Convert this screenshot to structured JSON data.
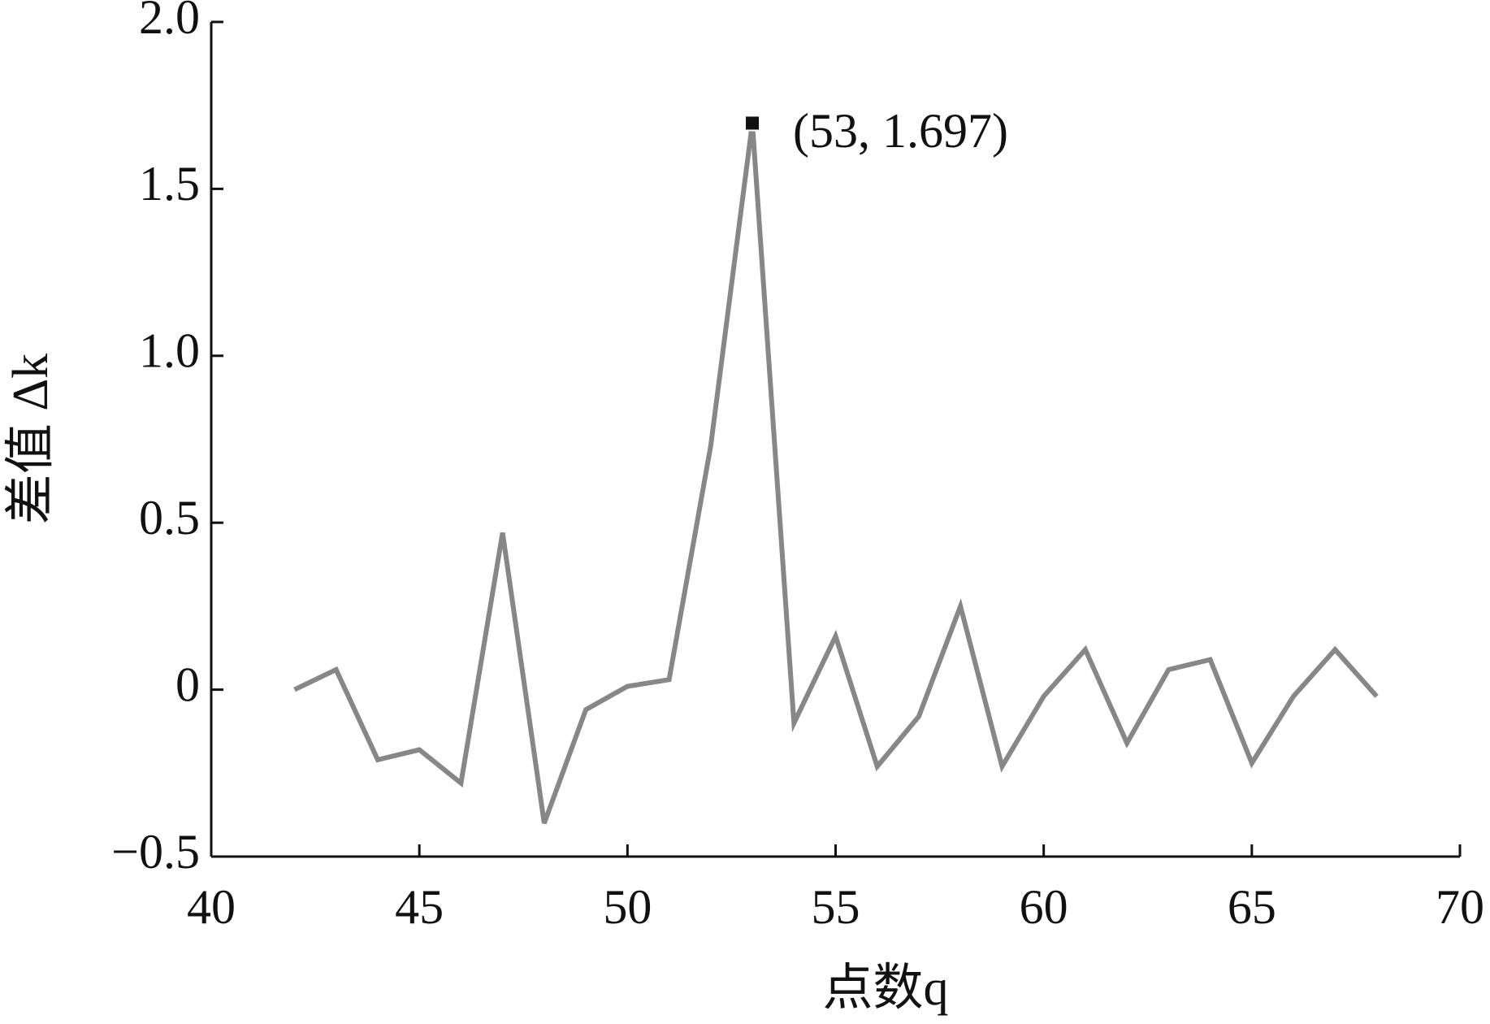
{
  "chart_data": {
    "type": "line",
    "x_label": "点数q",
    "y_label": "差值 Δk",
    "x": [
      42,
      43,
      44,
      45,
      46,
      47,
      48,
      49,
      50,
      51,
      52,
      53,
      54,
      55,
      56,
      57,
      58,
      59,
      60,
      61,
      62,
      63,
      64,
      65,
      66,
      67,
      68
    ],
    "series": [
      {
        "color": "#878787",
        "values": [
          0.0,
          0.06,
          -0.21,
          -0.18,
          -0.28,
          0.47,
          -0.4,
          -0.06,
          0.01,
          0.03,
          0.73,
          1.697,
          -0.1,
          0.16,
          -0.23,
          -0.08,
          0.25,
          -0.23,
          -0.02,
          0.12,
          -0.16,
          0.06,
          0.09,
          -0.22,
          -0.02,
          0.12,
          -0.02
        ]
      }
    ],
    "xlim": [
      40,
      70
    ],
    "ylim": [
      -0.5,
      2.0
    ],
    "xticks": [
      40,
      45,
      50,
      55,
      60,
      65,
      70
    ],
    "yticks": [
      {
        "value": -0.5,
        "label": "−0.5"
      },
      0,
      {
        "value": 0.5,
        "label": "0.5"
      },
      {
        "value": 1.0,
        "label": "1.0"
      },
      {
        "value": 1.5,
        "label": "1.5"
      },
      {
        "value": 2.0,
        "label": "2.0"
      }
    ],
    "annotation": {
      "text": "(53, 1.697)",
      "x": 53,
      "y": 1.697
    }
  }
}
